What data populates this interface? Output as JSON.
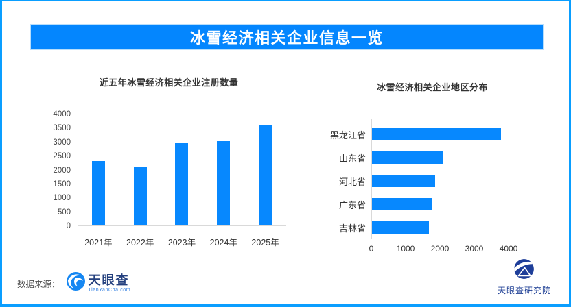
{
  "banner": {
    "title": "冰雪经济相关企业信息一览"
  },
  "colors": {
    "border_blue": "#0a9eff",
    "banner_blue": "#0486fe",
    "bar_blue": "#0788fe",
    "logo_navy": "#1e3e99",
    "text_dark": "#333333"
  },
  "chart_data": [
    {
      "type": "bar",
      "title": "近五年冰雪经济相关企业注册数量",
      "categories": [
        "2021年",
        "2022年",
        "2023年",
        "2024年",
        "2025年"
      ],
      "values": [
        2300,
        2120,
        2960,
        3030,
        3580
      ],
      "xlabel": "",
      "ylabel": "",
      "ylim": [
        0,
        4000
      ],
      "ytick_step": 500,
      "grid": false,
      "legend": false,
      "bar_color": "#0788fe"
    },
    {
      "type": "bar_horizontal",
      "title": "冰雪经济相关企业地区分布",
      "categories": [
        "黑龙江省",
        "山东省",
        "河北省",
        "广东省",
        "吉林省"
      ],
      "values": [
        3780,
        2070,
        1860,
        1750,
        1680
      ],
      "xlabel": "",
      "ylabel": "",
      "xlim": [
        0,
        4000
      ],
      "xticks": [
        0,
        1000,
        2000,
        3000,
        4000
      ],
      "grid": false,
      "legend": false,
      "bar_color": "#0788fe"
    }
  ],
  "footer": {
    "source_label": "数据来源：",
    "tyc": {
      "name": "天眼查",
      "domain": "TianYanCha.com"
    },
    "research": {
      "name": "天眼查研究院"
    }
  }
}
